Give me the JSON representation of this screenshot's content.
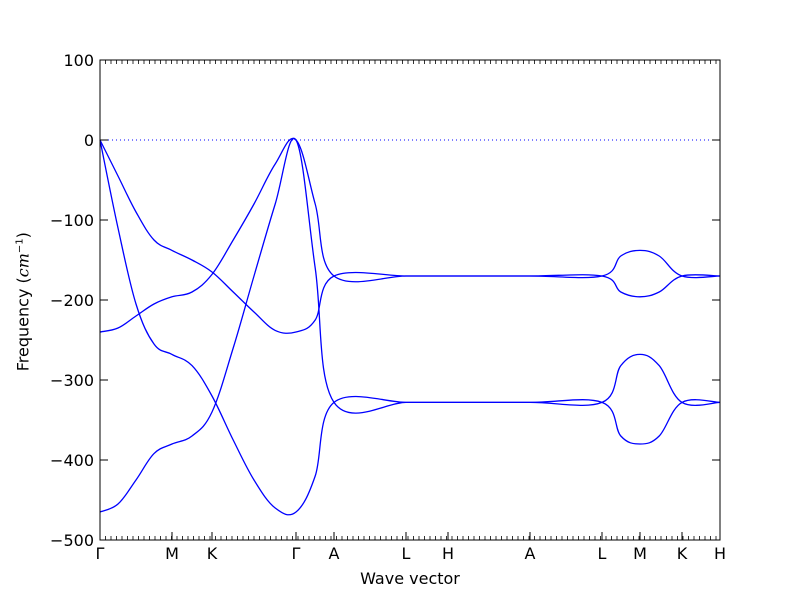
{
  "chart_data": {
    "type": "line",
    "title": "",
    "xlabel": "Wave vector",
    "ylabel": "Frequency",
    "ylabel_unit": "cm",
    "ylabel_unit_exp": "−1",
    "ylim": [
      -500,
      100
    ],
    "yticks": [
      100,
      0,
      -100,
      -200,
      -300,
      -400,
      -500
    ],
    "ytick_labels": [
      "100",
      "0",
      "−100",
      "−200",
      "−300",
      "−400",
      "−500"
    ],
    "xrange": [
      0,
      15.5
    ],
    "high_symmetry_points": [
      {
        "label": "Γ",
        "x": 0
      },
      {
        "label": "M",
        "x": 1.8
      },
      {
        "label": "K",
        "x": 2.8
      },
      {
        "label": "Γ",
        "x": 4.9
      },
      {
        "label": "A",
        "x": 5.85
      },
      {
        "label": "L",
        "x": 7.65
      },
      {
        "label": "H",
        "x": 8.7
      },
      {
        "label": "A",
        "x": 10.75
      },
      {
        "label": "L",
        "x": 12.55
      },
      {
        "label": "M",
        "x": 13.5
      },
      {
        "label": "K",
        "x": 14.55
      },
      {
        "label": "H",
        "x": 15.5
      }
    ],
    "zero_line": {
      "y": 0,
      "style": "dotted",
      "color": "#0000ff"
    },
    "line_color": "#0000ff",
    "series": [
      {
        "x": [
          0,
          0.45,
          0.9,
          1.35,
          1.8,
          2.3,
          2.8,
          3.33,
          3.85,
          4.38,
          4.9,
          5.38,
          5.85,
          7.65,
          8.7,
          10.75,
          12.55,
          13.02,
          13.5,
          13.98,
          14.55,
          15.5
        ],
        "y": [
          0,
          -45,
          -90,
          -125,
          -138,
          -150,
          -165,
          -190,
          -215,
          -238,
          -240,
          -225,
          -170,
          -170,
          -170,
          -170,
          -170,
          -145,
          -138,
          -145,
          -170,
          -170
        ]
      },
      {
        "x": [
          0,
          0.45,
          0.9,
          1.35,
          1.8,
          2.3,
          2.8,
          3.33,
          3.85,
          4.38,
          4.9,
          5.38,
          5.85,
          7.65,
          8.7,
          10.75,
          12.55,
          13.02,
          13.5,
          13.98,
          14.55,
          15.5
        ],
        "y": [
          -240,
          -235,
          -220,
          -205,
          -196,
          -190,
          -168,
          -125,
          -80,
          -30,
          0,
          -80,
          -170,
          -170,
          -170,
          -170,
          -170,
          -190,
          -196,
          -190,
          -170,
          -170
        ]
      },
      {
        "x": [
          0,
          0.45,
          0.9,
          1.35,
          1.8,
          2.3,
          2.8,
          3.33,
          3.85,
          4.38,
          4.9,
          5.38,
          5.85,
          7.65,
          8.7,
          10.75,
          12.55,
          13.02,
          13.5,
          13.98,
          14.55,
          15.5
        ],
        "y": [
          0,
          -110,
          -205,
          -255,
          -268,
          -282,
          -320,
          -375,
          -425,
          -460,
          -465,
          -420,
          -328,
          -328,
          -328,
          -328,
          -328,
          -282,
          -268,
          -282,
          -328,
          -328
        ]
      },
      {
        "x": [
          0,
          0.45,
          0.9,
          1.35,
          1.8,
          2.3,
          2.8,
          3.33,
          3.85,
          4.38,
          4.9,
          5.38,
          5.85,
          7.65,
          8.7,
          10.75,
          12.55,
          13.02,
          13.5,
          13.98,
          14.55,
          15.5
        ],
        "y": [
          -465,
          -455,
          -425,
          -392,
          -380,
          -370,
          -340,
          -260,
          -170,
          -80,
          0,
          -160,
          -328,
          -328,
          -328,
          -328,
          -328,
          -370,
          -380,
          -370,
          -328,
          -328
        ]
      }
    ]
  }
}
